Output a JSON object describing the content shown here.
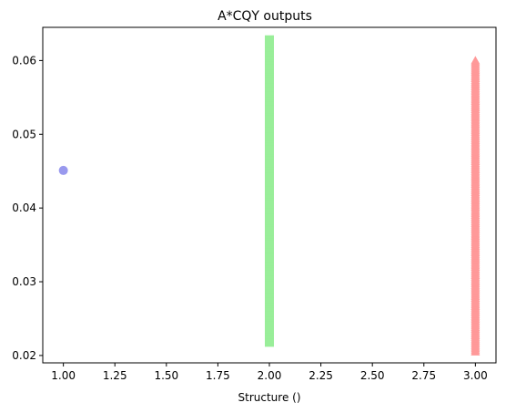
{
  "chart_data": {
    "type": "scatter",
    "title": "A*CQY outputs",
    "xlabel": "Structure ()",
    "ylabel": "",
    "xlim": [
      0.9,
      3.1
    ],
    "ylim": [
      0.019,
      0.0645
    ],
    "xticks": [
      1.0,
      1.25,
      1.5,
      1.75,
      2.0,
      2.25,
      2.5,
      2.75,
      3.0
    ],
    "xtick_labels": [
      "1.00",
      "1.25",
      "1.50",
      "1.75",
      "2.00",
      "2.25",
      "2.50",
      "2.75",
      "3.00"
    ],
    "yticks": [
      0.02,
      0.03,
      0.04,
      0.05,
      0.06
    ],
    "ytick_labels": [
      "0.02",
      "0.03",
      "0.04",
      "0.05",
      "0.06"
    ],
    "grid": false,
    "series": [
      {
        "x": 1.0,
        "y_values": [
          0.0451
        ],
        "marker": "circle",
        "color": "#9999ee"
      },
      {
        "x": 2.0,
        "y_min": 0.0218,
        "y_max": 0.0628,
        "marker": "square",
        "color": "#99ee99"
      },
      {
        "x": 3.0,
        "y_min": 0.0205,
        "y_max": 0.06,
        "marker": "triangle",
        "color": "#ff9999"
      }
    ]
  }
}
